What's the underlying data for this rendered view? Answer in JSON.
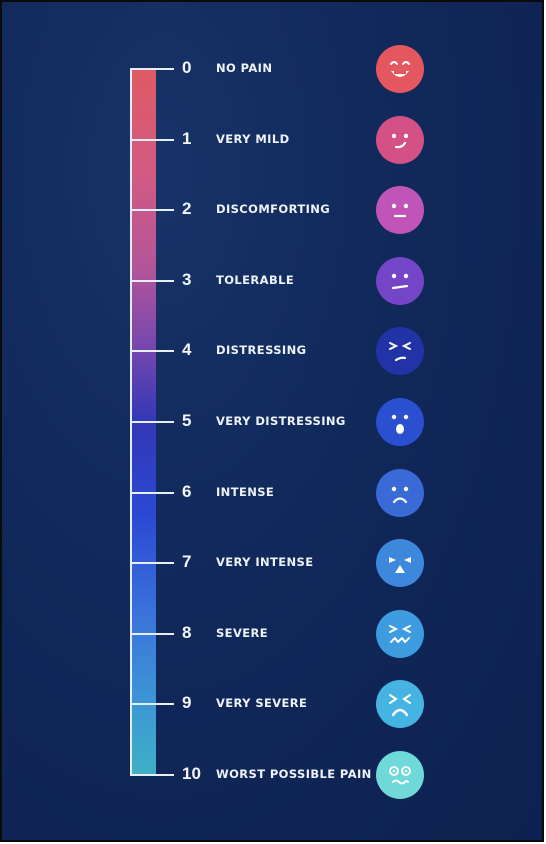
{
  "title": "",
  "scale": {
    "levels": [
      {
        "number": "0",
        "label": "NO PAIN",
        "face_icon": "grinning-face-icon",
        "color": "#e5575e"
      },
      {
        "number": "1",
        "label": "VERY MILD",
        "face_icon": "slight-smile-face-icon",
        "color": "#d45186"
      },
      {
        "number": "2",
        "label": "DISCOMFORTING",
        "face_icon": "neutral-face-icon",
        "color": "#c054b8"
      },
      {
        "number": "3",
        "label": "TOLERABLE",
        "face_icon": "flat-mouth-face-icon",
        "color": "#7445c7"
      },
      {
        "number": "4",
        "label": "DISTRESSING",
        "face_icon": "frowning-squint-face-icon",
        "color": "#2233a7"
      },
      {
        "number": "5",
        "label": "VERY DISTRESSING",
        "face_icon": "open-mouth-face-icon",
        "color": "#2b4fd1"
      },
      {
        "number": "6",
        "label": "INTENSE",
        "face_icon": "sad-face-icon",
        "color": "#3a6ad6"
      },
      {
        "number": "7",
        "label": "VERY INTENSE",
        "face_icon": "crying-face-icon",
        "color": "#3d88dc"
      },
      {
        "number": "8",
        "label": "SEVERE",
        "face_icon": "wincing-face-icon",
        "color": "#3d9be0"
      },
      {
        "number": "9",
        "label": "VERY SEVERE",
        "face_icon": "tormented-face-icon",
        "color": "#46b4e3"
      },
      {
        "number": "10",
        "label": "WORST POSSIBLE PAIN",
        "face_icon": "dizzy-face-icon",
        "color": "#6fd8d8"
      }
    ]
  }
}
